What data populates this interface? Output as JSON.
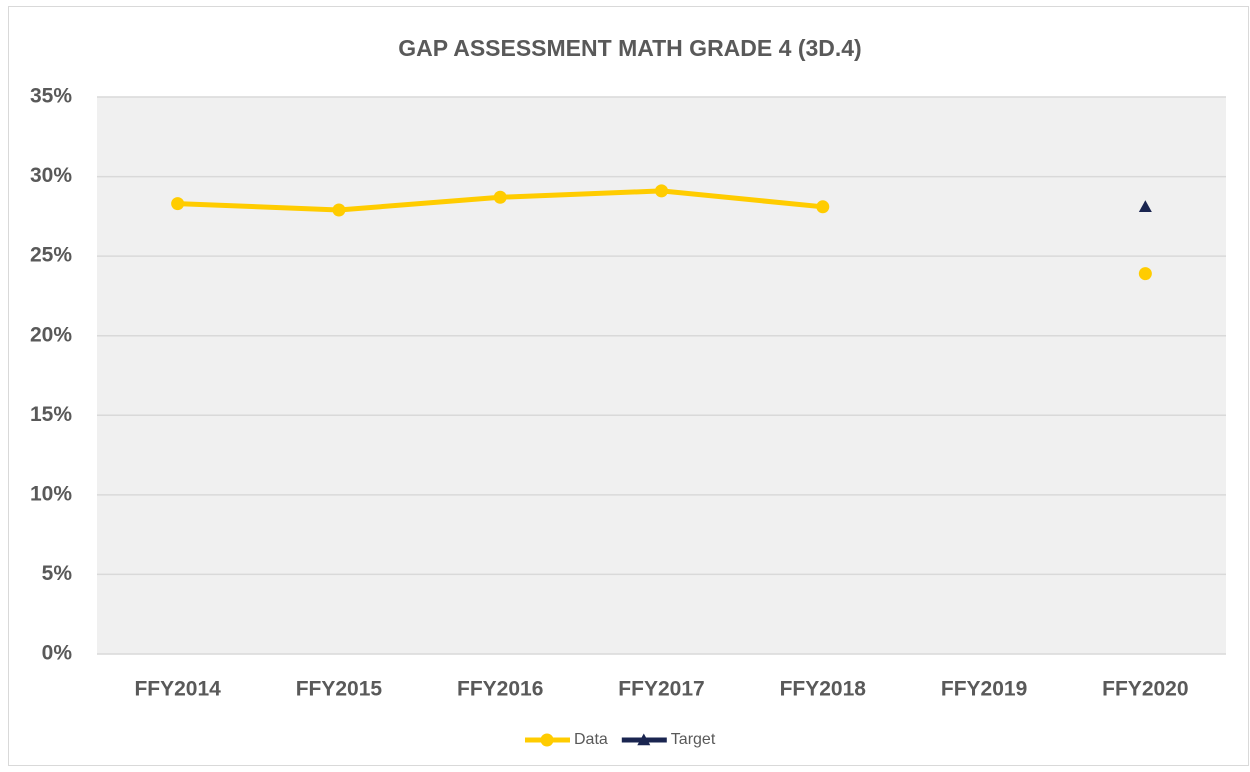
{
  "chart_data": {
    "type": "line",
    "title": "GAP ASSESSMENT MATH GRADE 4 (3D.4)",
    "categories": [
      "FFY2014",
      "FFY2015",
      "FFY2016",
      "FFY2017",
      "FFY2018",
      "FFY2019",
      "FFY2020"
    ],
    "series": [
      {
        "name": "Data",
        "color": "#ffcc00",
        "marker": "circle",
        "values": [
          28.3,
          27.9,
          28.7,
          29.1,
          28.1,
          null,
          23.9
        ]
      },
      {
        "name": "Target",
        "color": "#1a2550",
        "marker": "triangle",
        "values": [
          null,
          null,
          null,
          null,
          null,
          null,
          28.1
        ]
      }
    ],
    "ylim": [
      0,
      35
    ],
    "yticks": [
      {
        "value": 0,
        "label": "0%"
      },
      {
        "value": 5,
        "label": "5%"
      },
      {
        "value": 10,
        "label": "10%"
      },
      {
        "value": 15,
        "label": "15%"
      },
      {
        "value": 20,
        "label": "20%"
      },
      {
        "value": 25,
        "label": "25%"
      },
      {
        "value": 30,
        "label": "30%"
      },
      {
        "value": 35,
        "label": "35%"
      }
    ],
    "grid": true,
    "legend": "bottom"
  }
}
